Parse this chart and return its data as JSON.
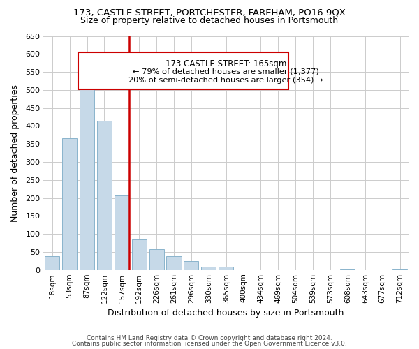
{
  "title1": "173, CASTLE STREET, PORTCHESTER, FAREHAM, PO16 9QX",
  "title2": "Size of property relative to detached houses in Portsmouth",
  "xlabel": "Distribution of detached houses by size in Portsmouth",
  "ylabel": "Number of detached properties",
  "bar_color": "#c6d9e8",
  "bar_edge_color": "#8ab4cc",
  "background_color": "#ffffff",
  "grid_color": "#cccccc",
  "categories": [
    "18sqm",
    "53sqm",
    "87sqm",
    "122sqm",
    "157sqm",
    "192sqm",
    "226sqm",
    "261sqm",
    "296sqm",
    "330sqm",
    "365sqm",
    "400sqm",
    "434sqm",
    "469sqm",
    "504sqm",
    "539sqm",
    "573sqm",
    "608sqm",
    "643sqm",
    "677sqm",
    "712sqm"
  ],
  "values": [
    38,
    365,
    516,
    414,
    207,
    84,
    57,
    38,
    25,
    10,
    10,
    0,
    0,
    0,
    0,
    0,
    0,
    2,
    0,
    0,
    2
  ],
  "ylim": [
    0,
    650
  ],
  "yticks": [
    0,
    50,
    100,
    150,
    200,
    250,
    300,
    350,
    400,
    450,
    500,
    550,
    600,
    650
  ],
  "vline_x": 4.42,
  "vline_color": "#cc0000",
  "annotation_title": "173 CASTLE STREET: 165sqm",
  "annotation_line1": "← 79% of detached houses are smaller (1,377)",
  "annotation_line2": "20% of semi-detached houses are larger (354) →",
  "annotation_box_color": "#ffffff",
  "annotation_box_edge": "#cc0000",
  "footer1": "Contains HM Land Registry data © Crown copyright and database right 2024.",
  "footer2": "Contains public sector information licensed under the Open Government Licence v3.0."
}
